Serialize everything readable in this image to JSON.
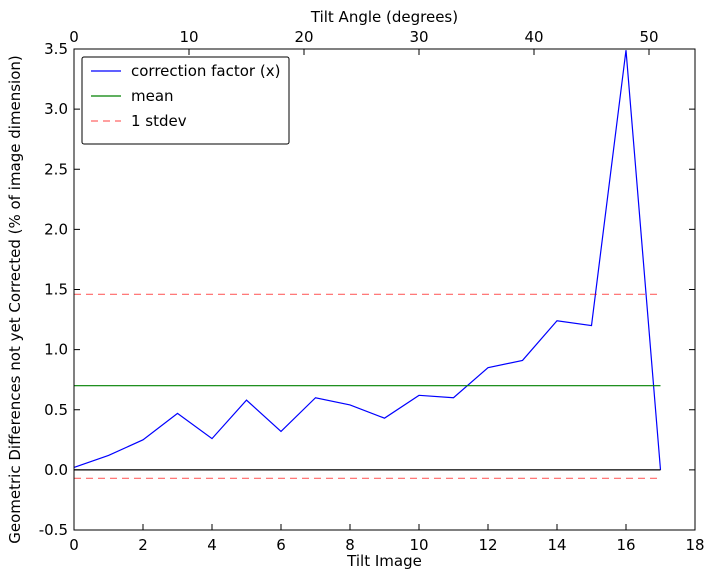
{
  "chart_data": {
    "type": "line",
    "xlabel": "Tilt Image",
    "x2label": "Tilt Angle (degrees)",
    "ylabel": "Geometric Differences not yet Corrected (% of image dimension)",
    "xlim": [
      0,
      18
    ],
    "ylim": [
      -0.5,
      3.5
    ],
    "x2lim": [
      0,
      54
    ],
    "xticks": [
      0,
      2,
      4,
      6,
      8,
      10,
      12,
      14,
      16,
      18
    ],
    "x2ticks": [
      0,
      10,
      20,
      30,
      40,
      50
    ],
    "yticks": [
      -0.5,
      0.0,
      0.5,
      1.0,
      1.5,
      2.0,
      2.5,
      3.0,
      3.5
    ],
    "grid": false,
    "legend_position": "top-left",
    "series": [
      {
        "name": "correction factor (x)",
        "color": "#0000ff",
        "style": "solid",
        "x": [
          0,
          1,
          2,
          3,
          4,
          5,
          6,
          7,
          8,
          9,
          10,
          11,
          12,
          13,
          14,
          15,
          16,
          17
        ],
        "values": [
          0.02,
          0.12,
          0.25,
          0.47,
          0.26,
          0.58,
          0.32,
          0.6,
          0.54,
          0.43,
          0.62,
          0.6,
          0.85,
          0.91,
          1.24,
          1.2,
          3.49,
          0.0
        ]
      },
      {
        "name": "mean",
        "color": "#008000",
        "style": "solid",
        "x": [
          0,
          17
        ],
        "values": [
          0.7,
          0.7
        ]
      },
      {
        "name": "1 stdev",
        "color": "#ff0000",
        "style": "dashed",
        "x": [
          0,
          17
        ],
        "values": [
          1.46,
          1.46
        ]
      },
      {
        "color": "#ff0000",
        "style": "dashed",
        "x": [
          0,
          17
        ],
        "values": [
          -0.07,
          -0.07
        ]
      },
      {
        "color": "#000000",
        "style": "solid",
        "x": [
          0,
          17
        ],
        "values": [
          0.0,
          0.0
        ]
      }
    ]
  }
}
